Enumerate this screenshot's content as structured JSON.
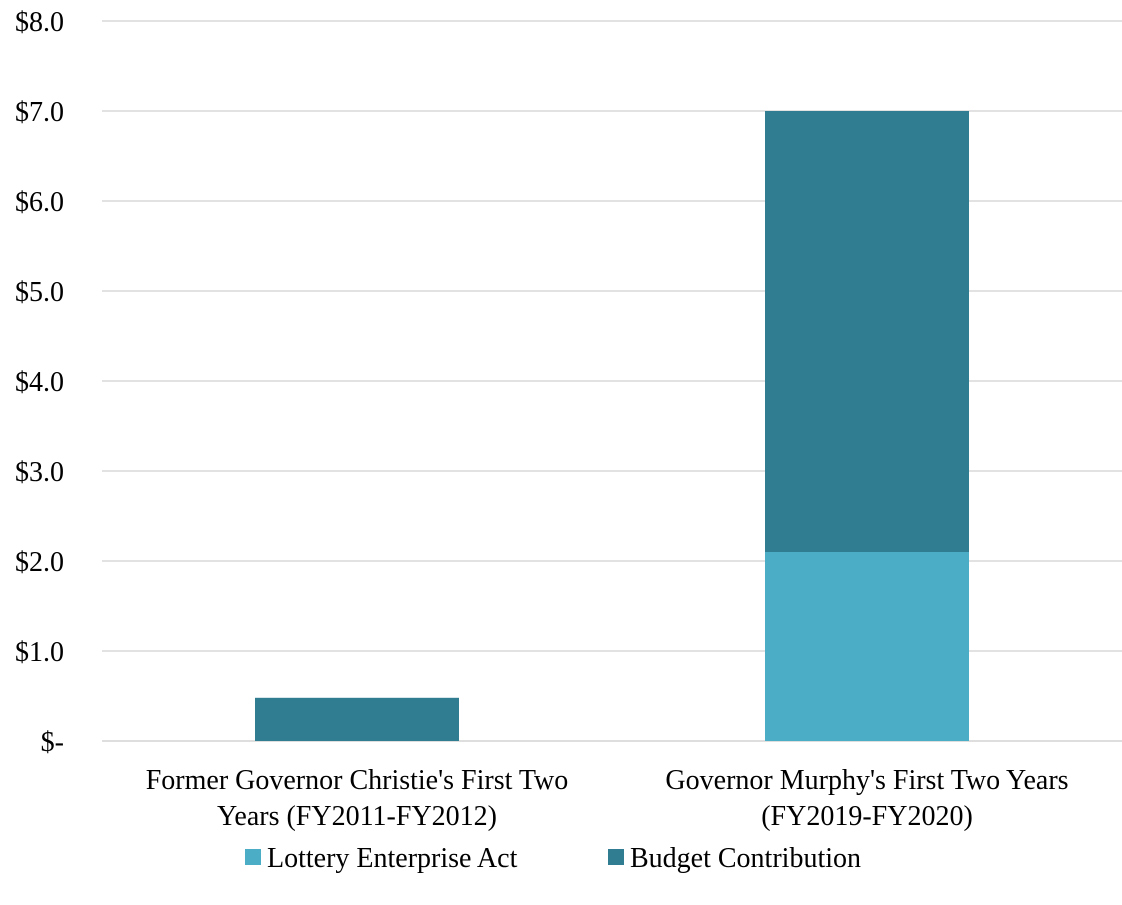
{
  "chart_data": {
    "type": "bar",
    "stacked": true,
    "categories": [
      [
        "Former Governor Christie's First Two",
        "Years (FY2011-FY2012)"
      ],
      [
        "Governor Murphy's First Two Years",
        "(FY2019-FY2020)"
      ]
    ],
    "series": [
      {
        "name": "Lottery Enterprise Act",
        "values": [
          0,
          2.1
        ],
        "color": "#4badc6"
      },
      {
        "name": "Budget Contribution",
        "values": [
          0.48,
          4.9
        ],
        "color": "#307d92"
      }
    ],
    "yticks": [
      {
        "value": 0,
        "label": "$-"
      },
      {
        "value": 1,
        "label": "$1.0"
      },
      {
        "value": 2,
        "label": "$2.0"
      },
      {
        "value": 3,
        "label": "$3.0"
      },
      {
        "value": 4,
        "label": "$4.0"
      },
      {
        "value": 5,
        "label": "$5.0"
      },
      {
        "value": 6,
        "label": "$6.0"
      },
      {
        "value": 7,
        "label": "$7.0"
      },
      {
        "value": 8,
        "label": "$8.0"
      }
    ],
    "ylim": [
      0,
      8
    ],
    "grid": true,
    "gridline_color": "#d9d9d9",
    "legend_position": "bottom",
    "title": "",
    "xlabel": "",
    "ylabel": ""
  }
}
